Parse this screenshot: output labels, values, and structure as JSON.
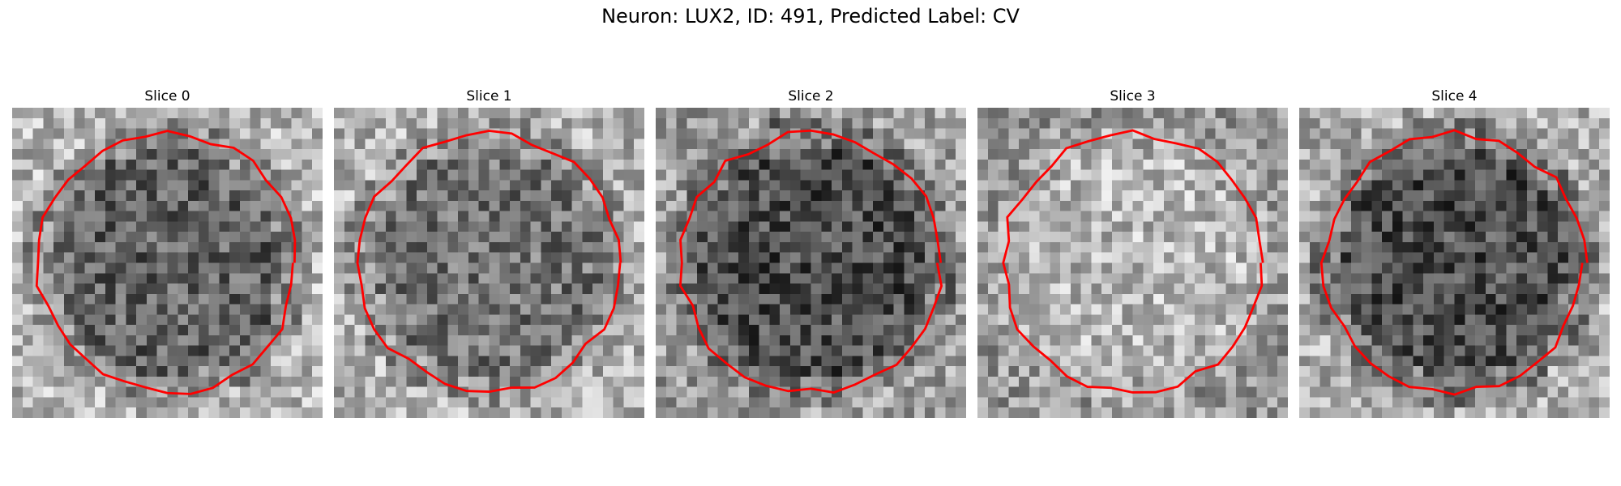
{
  "figure": {
    "title": "Neuron: LUX2, ID: 491, Predicted Label: CV"
  },
  "panels": [
    {
      "title": "Slice 0",
      "seed": 11,
      "base": 0.42,
      "center": 0.38,
      "edge": 0.72
    },
    {
      "title": "Slice 1",
      "seed": 23,
      "base": 0.44,
      "center": 0.45,
      "edge": 0.7
    },
    {
      "title": "Slice 2",
      "seed": 37,
      "base": 0.3,
      "center": 0.3,
      "edge": 0.62
    },
    {
      "title": "Slice 3",
      "seed": 53,
      "base": 0.58,
      "center": 0.72,
      "edge": 0.6
    },
    {
      "title": "Slice 4",
      "seed": 71,
      "base": 0.32,
      "center": 0.3,
      "edge": 0.68
    }
  ],
  "colors": {
    "contour": "#ff0000",
    "background": "#ffffff"
  },
  "colormap": "gray"
}
